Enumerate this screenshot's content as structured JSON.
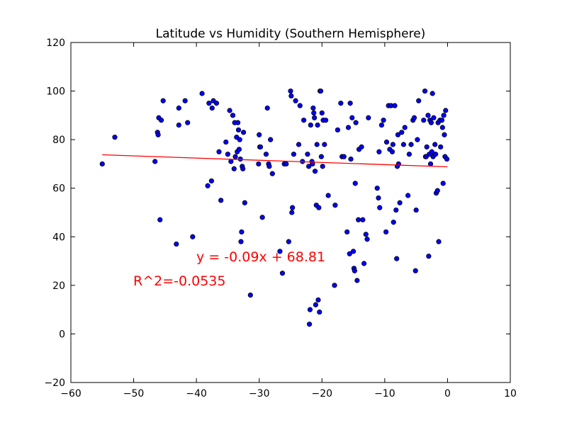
{
  "chart_data": {
    "type": "scatter",
    "title": "Latitude vs Humidity (Southern Hemisphere)",
    "xlabel": "",
    "ylabel": "",
    "xlim": [
      -60,
      10
    ],
    "ylim": [
      -20,
      120
    ],
    "xticks": [
      -60,
      -50,
      -40,
      -30,
      -20,
      -10,
      0,
      10
    ],
    "yticks": [
      -20,
      0,
      20,
      40,
      60,
      80,
      100,
      120
    ],
    "grid": false,
    "marker_color": "#0000ff",
    "line_color": "#ff0000",
    "annotation_color": "#ff0000",
    "regression": {
      "slope": -0.09,
      "intercept": 68.81,
      "x_range": [
        -55,
        0
      ],
      "equation_label": "y = -0.09x + 68.81",
      "r2_label": "R^2=-0.0535"
    },
    "points": [
      [
        -55,
        70
      ],
      [
        -53,
        81
      ],
      [
        -46.6,
        71
      ],
      [
        -46.2,
        83
      ],
      [
        -46.1,
        82
      ],
      [
        -46,
        89
      ],
      [
        -45.8,
        47
      ],
      [
        -45.6,
        88
      ],
      [
        -45.3,
        96
      ],
      [
        -43.2,
        37
      ],
      [
        -42.8,
        86
      ],
      [
        -42.8,
        93
      ],
      [
        -41.8,
        96
      ],
      [
        -41.4,
        87
      ],
      [
        -40.6,
        40
      ],
      [
        -39.1,
        99
      ],
      [
        -38.2,
        61
      ],
      [
        -38,
        95
      ],
      [
        -37.6,
        63
      ],
      [
        -37.5,
        93
      ],
      [
        -37.3,
        96
      ],
      [
        -36.8,
        95
      ],
      [
        -36.4,
        75
      ],
      [
        -36.1,
        55
      ],
      [
        -35.3,
        79
      ],
      [
        -35,
        74
      ],
      [
        -34.7,
        92
      ],
      [
        -34.5,
        71
      ],
      [
        -34.2,
        90
      ],
      [
        -34,
        68
      ],
      [
        -33.9,
        87
      ],
      [
        -33.8,
        73
      ],
      [
        -33.6,
        81
      ],
      [
        -33.5,
        75
      ],
      [
        -33.4,
        87
      ],
      [
        -33.3,
        84
      ],
      [
        -33.2,
        76
      ],
      [
        -33.1,
        80
      ],
      [
        -33,
        72
      ],
      [
        -32.9,
        38
      ],
      [
        -32.8,
        42
      ],
      [
        -32.7,
        69
      ],
      [
        -32.6,
        68
      ],
      [
        -32.5,
        83
      ],
      [
        -32.3,
        54
      ],
      [
        -31.4,
        16
      ],
      [
        -30.1,
        70
      ],
      [
        -30,
        82
      ],
      [
        -29.9,
        77
      ],
      [
        -29.8,
        77
      ],
      [
        -29.5,
        48
      ],
      [
        -28.9,
        74
      ],
      [
        -28.7,
        93
      ],
      [
        -28.5,
        70
      ],
      [
        -28.4,
        69
      ],
      [
        -28.2,
        80
      ],
      [
        -27.9,
        66
      ],
      [
        -26.7,
        34
      ],
      [
        -26.3,
        25
      ],
      [
        -26,
        70
      ],
      [
        -25.7,
        70
      ],
      [
        -25.3,
        38
      ],
      [
        -25,
        100
      ],
      [
        -24.9,
        98
      ],
      [
        -24.8,
        50
      ],
      [
        -24.7,
        52
      ],
      [
        -24.5,
        74
      ],
      [
        -24.2,
        96
      ],
      [
        -23.7,
        78
      ],
      [
        -23.5,
        94
      ],
      [
        -23.1,
        71
      ],
      [
        -22.9,
        88
      ],
      [
        -22.3,
        74
      ],
      [
        -22.1,
        69
      ],
      [
        -22,
        4
      ],
      [
        -21.9,
        10
      ],
      [
        -21.8,
        86
      ],
      [
        -21.6,
        71
      ],
      [
        -21.5,
        70
      ],
      [
        -21.4,
        93
      ],
      [
        -21.3,
        91
      ],
      [
        -21.2,
        89
      ],
      [
        -21.1,
        67
      ],
      [
        -21,
        12
      ],
      [
        -20.9,
        53
      ],
      [
        -20.8,
        78
      ],
      [
        -20.7,
        86
      ],
      [
        -20.6,
        14
      ],
      [
        -20.5,
        52
      ],
      [
        -20.4,
        9
      ],
      [
        -20.3,
        100
      ],
      [
        -20.2,
        100
      ],
      [
        -20.1,
        73
      ],
      [
        -20,
        91
      ],
      [
        -19.9,
        69
      ],
      [
        -19.8,
        88
      ],
      [
        -19.6,
        78
      ],
      [
        -19.4,
        88
      ],
      [
        -19,
        57
      ],
      [
        -18,
        20
      ],
      [
        -17.9,
        53
      ],
      [
        -17.5,
        84
      ],
      [
        -17,
        95
      ],
      [
        -16.8,
        73
      ],
      [
        -16.5,
        73
      ],
      [
        -16,
        42
      ],
      [
        -15.8,
        85
      ],
      [
        -15.6,
        33
      ],
      [
        -15.5,
        95
      ],
      [
        -15.4,
        72
      ],
      [
        -15.2,
        89
      ],
      [
        -15,
        34
      ],
      [
        -14.9,
        27
      ],
      [
        -14.8,
        26
      ],
      [
        -14.7,
        62
      ],
      [
        -14.6,
        87
      ],
      [
        -14.4,
        22
      ],
      [
        -14.2,
        47
      ],
      [
        -14.1,
        76
      ],
      [
        -13.7,
        77
      ],
      [
        -13.5,
        47
      ],
      [
        -13.3,
        29
      ],
      [
        -13,
        41
      ],
      [
        -12.8,
        39
      ],
      [
        -12.6,
        89
      ],
      [
        -11.2,
        60
      ],
      [
        -11,
        56
      ],
      [
        -10.9,
        75
      ],
      [
        -10.8,
        52
      ],
      [
        -10.5,
        86
      ],
      [
        -10.2,
        88
      ],
      [
        -9.8,
        42
      ],
      [
        -9.7,
        79
      ],
      [
        -9.4,
        94
      ],
      [
        -9.2,
        76
      ],
      [
        -9,
        94
      ],
      [
        -8.8,
        75
      ],
      [
        -8.7,
        78
      ],
      [
        -8.6,
        46
      ],
      [
        -8.4,
        94
      ],
      [
        -8.2,
        51
      ],
      [
        -8.1,
        31
      ],
      [
        -8,
        69
      ],
      [
        -7.9,
        82
      ],
      [
        -7.8,
        70
      ],
      [
        -7.6,
        54
      ],
      [
        -7.3,
        83
      ],
      [
        -7,
        78
      ],
      [
        -6.8,
        85
      ],
      [
        -6.3,
        57
      ],
      [
        -6.1,
        74
      ],
      [
        -5.8,
        78
      ],
      [
        -5.5,
        88
      ],
      [
        -5.3,
        89
      ],
      [
        -5.1,
        26
      ],
      [
        -5,
        51
      ],
      [
        -4.8,
        80
      ],
      [
        -4.6,
        96
      ],
      [
        -3.8,
        88
      ],
      [
        -3.6,
        100
      ],
      [
        -3.5,
        73
      ],
      [
        -3.4,
        73
      ],
      [
        -3.3,
        77
      ],
      [
        -3.1,
        90
      ],
      [
        -3,
        32
      ],
      [
        -2.9,
        74
      ],
      [
        -2.8,
        88
      ],
      [
        -2.7,
        70
      ],
      [
        -2.6,
        87
      ],
      [
        -2.5,
        75
      ],
      [
        -2.4,
        99
      ],
      [
        -2.3,
        73
      ],
      [
        -2.2,
        89
      ],
      [
        -2,
        78
      ],
      [
        -1.9,
        74
      ],
      [
        -1.8,
        58
      ],
      [
        -1.6,
        59
      ],
      [
        -1.5,
        87
      ],
      [
        -1.4,
        38
      ],
      [
        -1.2,
        88
      ],
      [
        -1.1,
        77
      ],
      [
        -0.9,
        88
      ],
      [
        -0.8,
        85
      ],
      [
        -0.7,
        62
      ],
      [
        -0.6,
        90
      ],
      [
        -0.5,
        82
      ],
      [
        -0.4,
        73
      ],
      [
        -0.3,
        92
      ],
      [
        -0.1,
        72
      ]
    ]
  }
}
